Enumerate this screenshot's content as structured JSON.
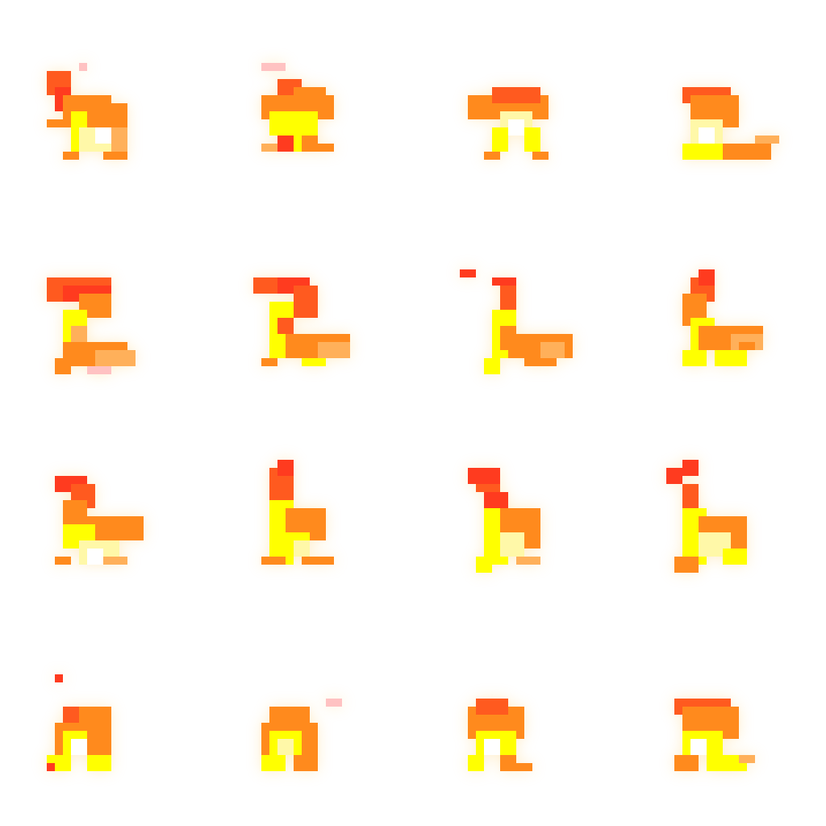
{
  "sheet": {
    "frame_count": 16,
    "palette": {
      "deep_red": "#ff3b1f",
      "red_orange": "#ff5a1f",
      "orange": "#ff8a1d",
      "light_orange": "#ffb05a",
      "yellow": "#ffff00",
      "pale_yellow": "#fff8a8",
      "white_hot": "#ffffff",
      "pink_ember": "#ffc2c2",
      "glow": "#ffd37a"
    }
  }
}
